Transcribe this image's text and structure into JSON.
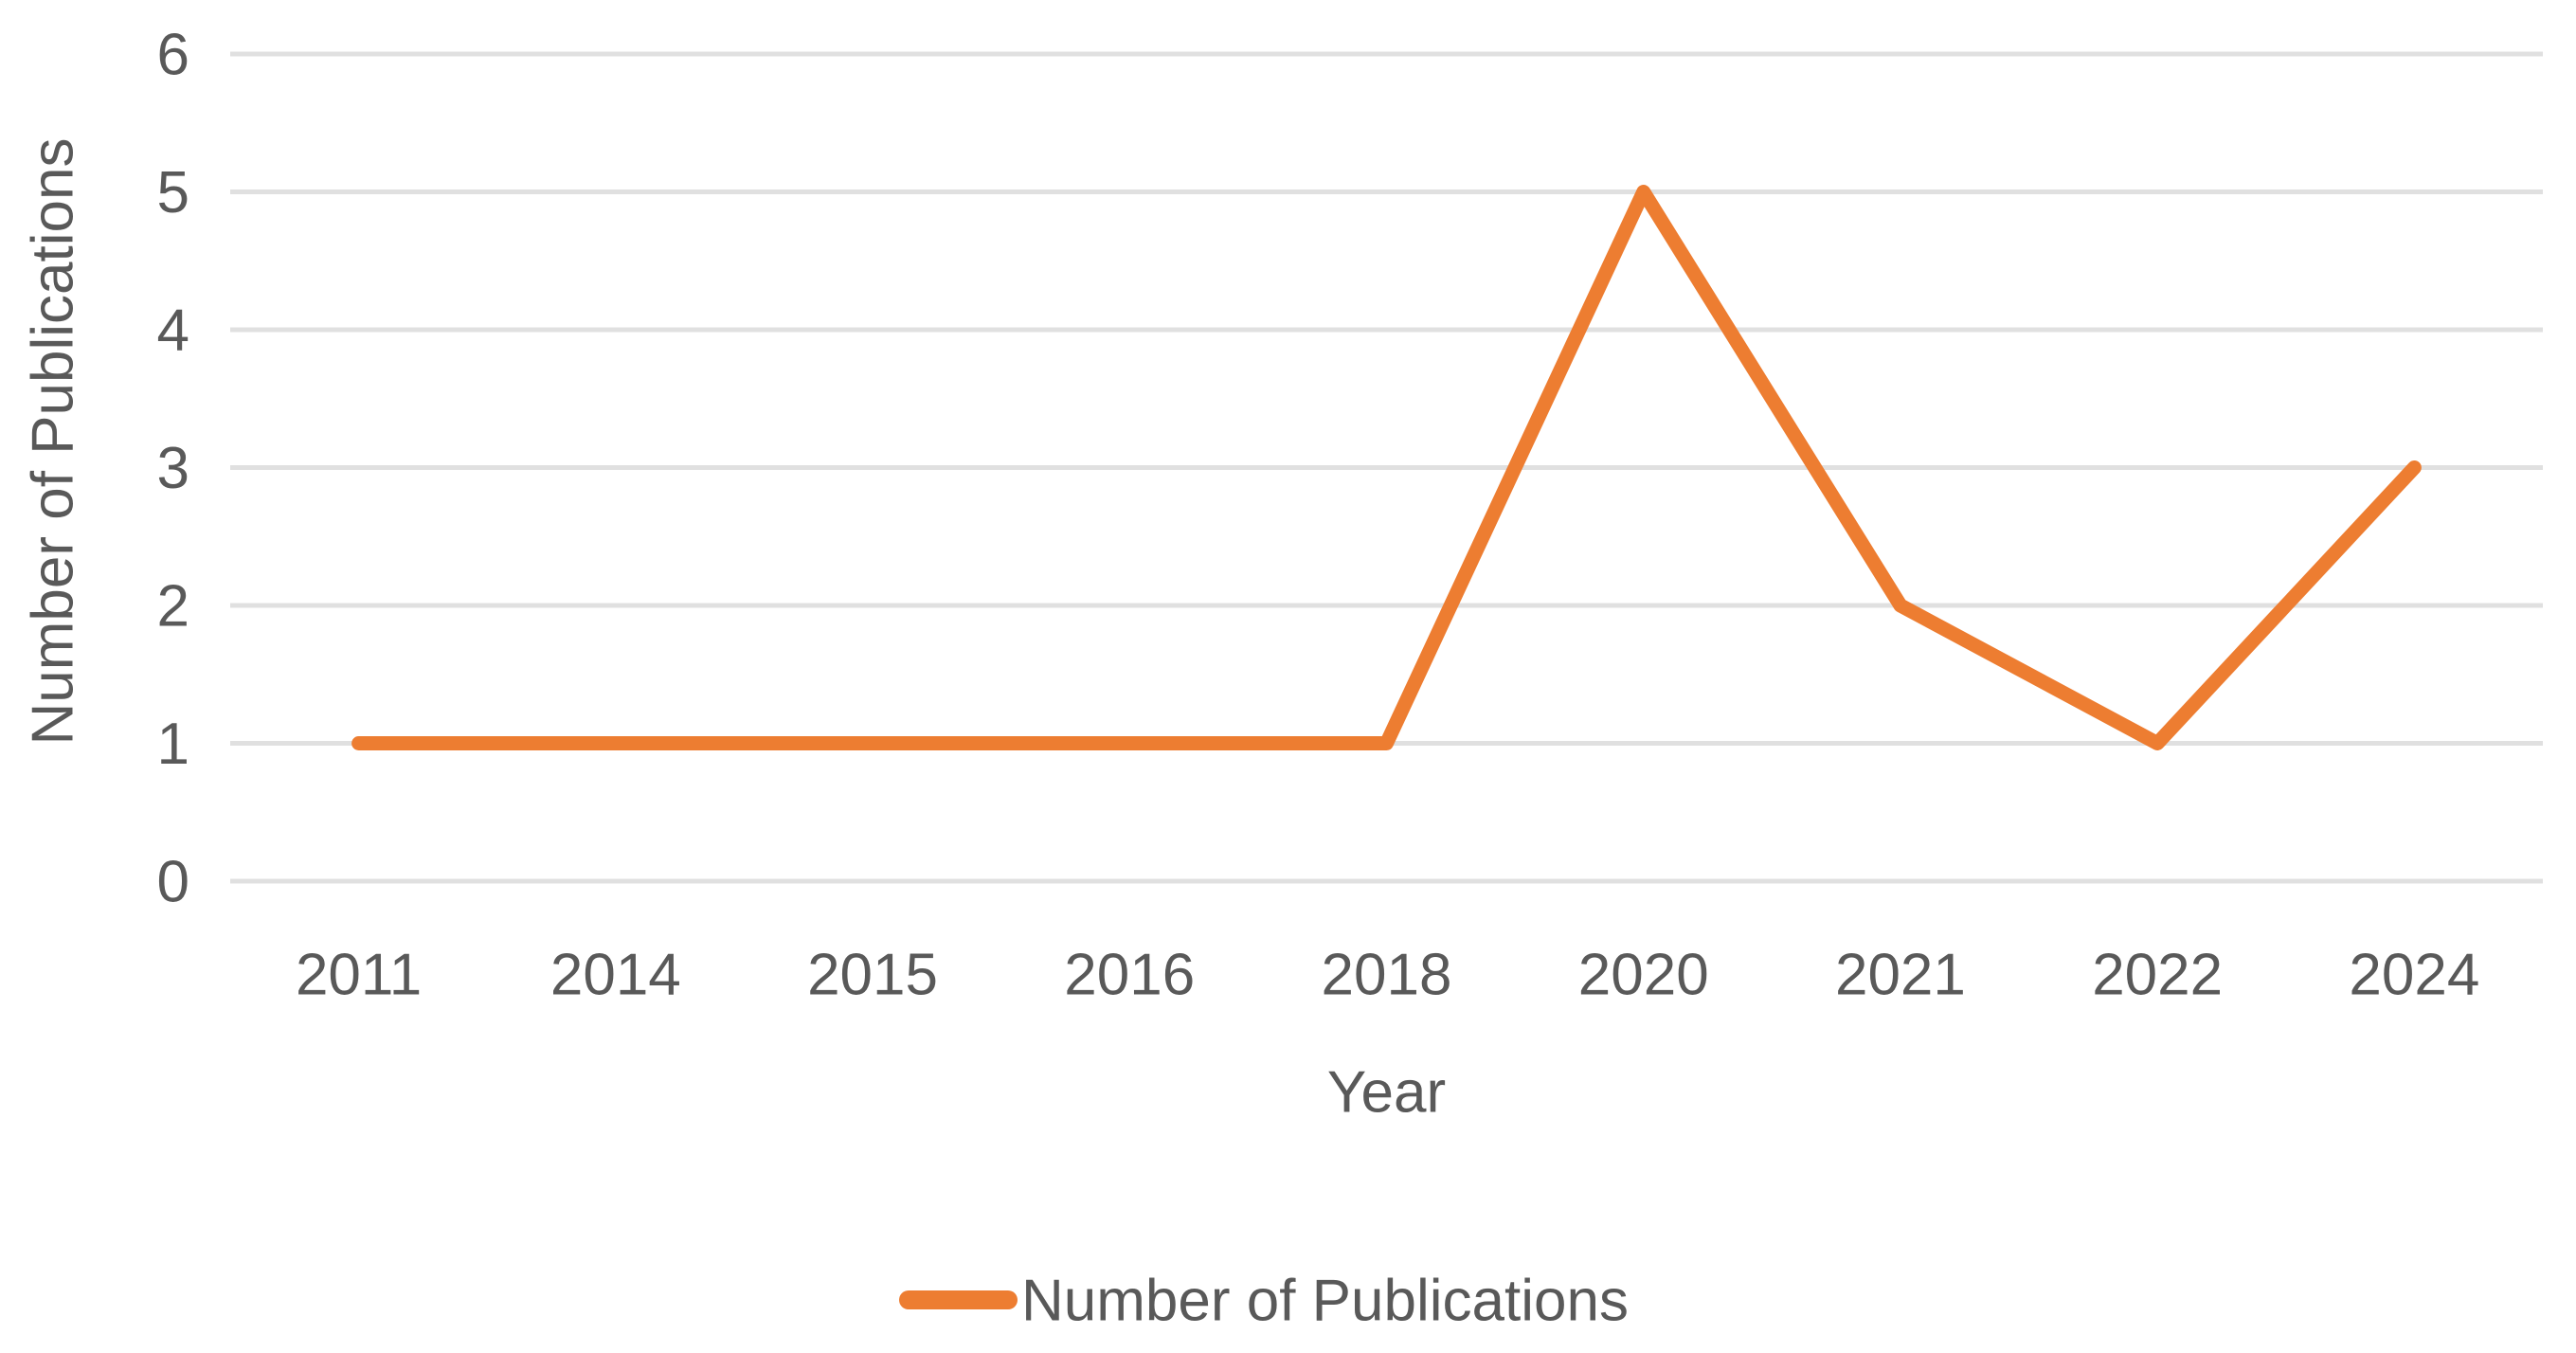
{
  "chart_data": {
    "type": "line",
    "categories": [
      "2011",
      "2014",
      "2015",
      "2016",
      "2018",
      "2020",
      "2021",
      "2022",
      "2024"
    ],
    "series": [
      {
        "name": "Number of Publications",
        "values": [
          1,
          1,
          1,
          1,
          1,
          5,
          2,
          1,
          3
        ]
      }
    ],
    "title": "",
    "xlabel": "Year",
    "ylabel": "Number of Publications",
    "ylim": [
      0,
      6
    ],
    "ytick_step": 1,
    "ytick_labels": [
      "0",
      "1",
      "2",
      "3",
      "4",
      "5",
      "6"
    ],
    "grid": "horizontal",
    "legend_position": "bottom-center",
    "legend_entries": [
      "Number of Publications"
    ],
    "colors": {
      "line": "#ED7D31",
      "gridline": "#E0E0E0",
      "text": "#595959",
      "background": "#FFFFFF"
    }
  }
}
